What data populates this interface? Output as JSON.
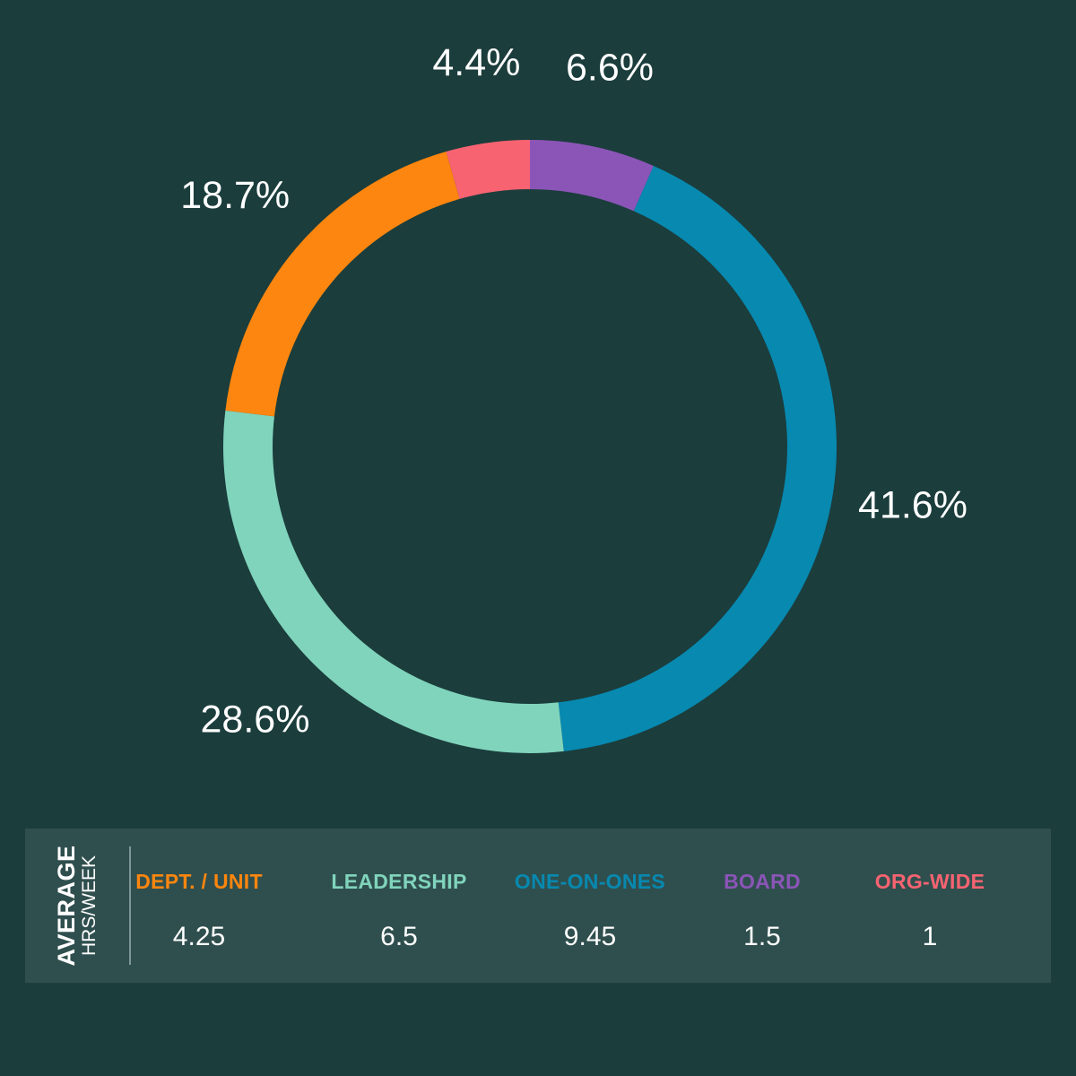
{
  "chart_data": {
    "type": "pie",
    "subtype": "donut",
    "start_angle_deg": 0,
    "direction": "clockwise",
    "slices": [
      {
        "name": "BOARD",
        "value": 1.5,
        "label": "6.6%",
        "color": "#8b55b7"
      },
      {
        "name": "ONE-ON-ONES",
        "value": 9.45,
        "label": "41.6%",
        "color": "#0789b0"
      },
      {
        "name": "LEADERSHIP",
        "value": 6.5,
        "label": "28.6%",
        "color": "#80d4bc"
      },
      {
        "name": "DEPT. / UNIT",
        "value": 4.25,
        "label": "18.7%",
        "color": "#fc860f"
      },
      {
        "name": "ORG-WIDE",
        "value": 1,
        "label": "4.4%",
        "color": "#f76371"
      }
    ]
  },
  "legend": {
    "caption_main": "AVERAGE",
    "caption_sub": "HRS/WEEK",
    "items": [
      {
        "name": "DEPT. / UNIT",
        "value": "4.25",
        "color": "#fc860f"
      },
      {
        "name": "LEADERSHIP",
        "value": "6.5",
        "color": "#80d4bc"
      },
      {
        "name": "ONE-ON-ONES",
        "value": "9.45",
        "color": "#0789b0"
      },
      {
        "name": "BOARD",
        "value": "1.5",
        "color": "#8b55b7"
      },
      {
        "name": "ORG-WIDE",
        "value": "1",
        "color": "#f76371"
      }
    ]
  },
  "colors": {
    "background": "#1b3d3c",
    "legend_panel": "#2f4f4e",
    "text": "#ffffff"
  }
}
